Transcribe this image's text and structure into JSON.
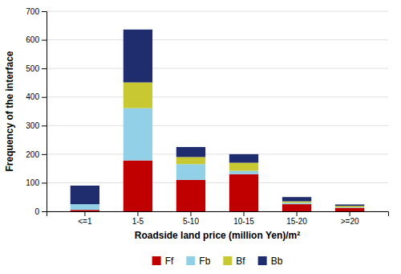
{
  "chart_data": {
    "type": "bar",
    "stacked": true,
    "categories": [
      "<=1",
      "1-5",
      "5-10",
      "10-15",
      "15-20",
      ">=20"
    ],
    "series": [
      {
        "name": "Ff",
        "color": "#c00000",
        "values": [
          5,
          178,
          110,
          130,
          25,
          12
        ]
      },
      {
        "name": "Fb",
        "color": "#92d0e8",
        "values": [
          20,
          183,
          55,
          12,
          5,
          2
        ]
      },
      {
        "name": "Bf",
        "color": "#c8c832",
        "values": [
          0,
          90,
          25,
          28,
          5,
          5
        ]
      },
      {
        "name": "Bb",
        "color": "#1f2d6e",
        "values": [
          65,
          185,
          35,
          30,
          15,
          5
        ]
      }
    ],
    "xlabel": "Roadside land price (million Yen)/m²",
    "ylabel": "Frequency of the interface",
    "ylim": [
      0,
      700
    ],
    "yticks": [
      0,
      100,
      200,
      300,
      400,
      500,
      600,
      700
    ],
    "grid": true,
    "legend": "bottom"
  }
}
